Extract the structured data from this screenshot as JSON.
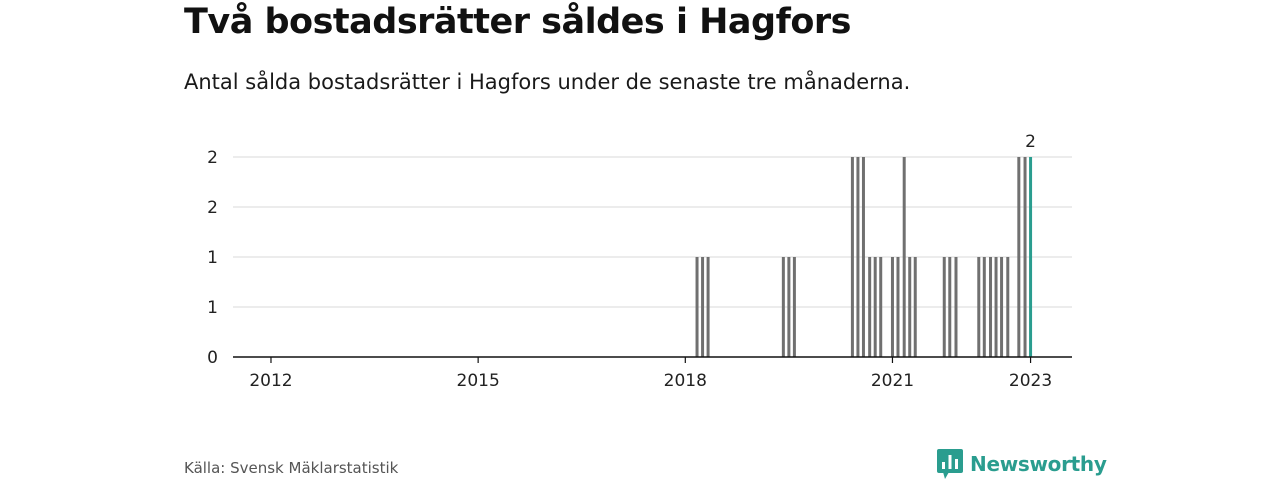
{
  "title": "Två bostadsrätter såldes i Hagfors",
  "subtitle": "Antal sålda bostadsrätter i Hagfors under de senaste tre månaderna.",
  "source": "Källa: Svensk Mäklarstatistik",
  "brand": {
    "name": "Newsworthy",
    "icon": "newsworthy-logo-icon"
  },
  "colors": {
    "bar": "#707070",
    "highlight": "#2a9d8f",
    "grid": "#d9d9d9",
    "axis": "#111111"
  },
  "chart_data": {
    "type": "bar",
    "ylim": [
      0,
      2
    ],
    "y_ticks": [
      0,
      0.5,
      1,
      1.5,
      2
    ],
    "y_tick_labels": [
      "0",
      "1",
      "1",
      "2",
      "2"
    ],
    "x_ticks": [
      {
        "x": 2012.0,
        "label": "2012"
      },
      {
        "x": 2015.0,
        "label": "2015"
      },
      {
        "x": 2018.0,
        "label": "2018"
      },
      {
        "x": 2021.0,
        "label": "2021"
      },
      {
        "x": 2023.0,
        "label": "2023"
      }
    ],
    "xlim": [
      2011.45,
      2023.6
    ],
    "grid": true,
    "bars": [
      {
        "x": 2018.17,
        "value": 1
      },
      {
        "x": 2018.25,
        "value": 1
      },
      {
        "x": 2018.33,
        "value": 1
      },
      {
        "x": 2019.42,
        "value": 1
      },
      {
        "x": 2019.5,
        "value": 1
      },
      {
        "x": 2019.58,
        "value": 1
      },
      {
        "x": 2020.42,
        "value": 2
      },
      {
        "x": 2020.5,
        "value": 2
      },
      {
        "x": 2020.58,
        "value": 2
      },
      {
        "x": 2020.67,
        "value": 1
      },
      {
        "x": 2020.75,
        "value": 1
      },
      {
        "x": 2020.83,
        "value": 1
      },
      {
        "x": 2021.0,
        "value": 1
      },
      {
        "x": 2021.08,
        "value": 1
      },
      {
        "x": 2021.17,
        "value": 2
      },
      {
        "x": 2021.25,
        "value": 1
      },
      {
        "x": 2021.33,
        "value": 1
      },
      {
        "x": 2021.75,
        "value": 1
      },
      {
        "x": 2021.83,
        "value": 1
      },
      {
        "x": 2021.92,
        "value": 1
      },
      {
        "x": 2022.25,
        "value": 1
      },
      {
        "x": 2022.33,
        "value": 1
      },
      {
        "x": 2022.42,
        "value": 1
      },
      {
        "x": 2022.5,
        "value": 1
      },
      {
        "x": 2022.58,
        "value": 1
      },
      {
        "x": 2022.67,
        "value": 1
      },
      {
        "x": 2022.83,
        "value": 2
      },
      {
        "x": 2022.92,
        "value": 2
      },
      {
        "x": 2023.0,
        "value": 2,
        "highlight": true,
        "label": "2"
      }
    ]
  }
}
